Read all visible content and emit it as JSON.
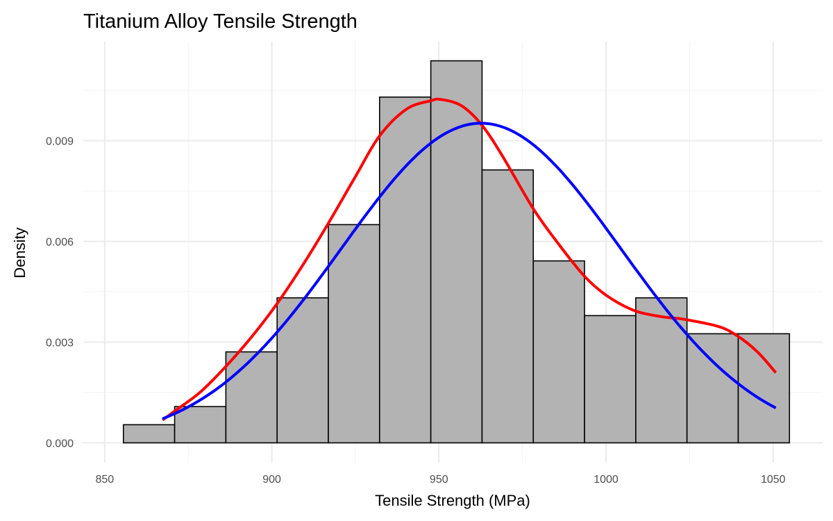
{
  "chart_data": {
    "type": "histogram",
    "title": "Titanium Alloy Tensile Strength",
    "xlabel": "Tensile Strength (MPa)",
    "ylabel": "Density",
    "xlim": [
      843.6,
      1064.8
    ],
    "ylim": [
      -0.00059,
      0.01195
    ],
    "x_ticks": [
      850,
      900,
      950,
      1000,
      1050
    ],
    "x_tick_labels": [
      "850",
      "900",
      "950",
      "1000",
      "1050"
    ],
    "y_ticks": [
      0,
      0.003,
      0.006,
      0.009
    ],
    "y_tick_labels": [
      "0.000",
      "0.003",
      "0.006",
      "0.009"
    ],
    "grid": true,
    "bar_fill": "#b3b3b3",
    "bar_edge": "#000000",
    "bins": {
      "start": 855.6,
      "width": 15.33,
      "density": [
        0.00054,
        0.00108,
        0.00271,
        0.00432,
        0.0065,
        0.0103,
        0.01138,
        0.00813,
        0.00542,
        0.00379,
        0.00432,
        0.00325,
        0.00325
      ]
    },
    "kde": {
      "color": "#ff0000",
      "x": [
        867.3,
        871.0,
        878.6,
        886.2,
        894.0,
        901.6,
        909.5,
        917.1,
        924.9,
        932.3,
        940.3,
        947.5,
        950.6,
        956.8,
        962.9,
        969.1,
        978.2,
        985.6,
        993.4,
        1000.0,
        1008.2,
        1016.5,
        1023.3,
        1033.5,
        1039.1,
        1045.3,
        1050.8
      ],
      "y": [
        0.00068,
        0.00095,
        0.00151,
        0.00227,
        0.00316,
        0.00415,
        0.00533,
        0.00657,
        0.00791,
        0.00915,
        0.00994,
        0.01019,
        0.01023,
        0.01004,
        0.00946,
        0.00853,
        0.00698,
        0.00595,
        0.00498,
        0.0044,
        0.00395,
        0.00376,
        0.00368,
        0.00347,
        0.0032,
        0.00271,
        0.00209
      ]
    },
    "normal_fit": {
      "color": "#0000ff",
      "mean": 962.6,
      "sd": 41.9,
      "x_range": [
        867.3,
        1050.8
      ]
    }
  }
}
